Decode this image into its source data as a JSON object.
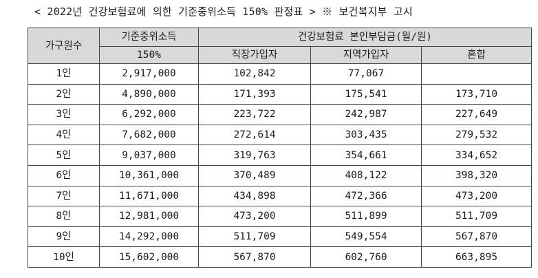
{
  "title": "< 2022년 건강보험료에 의한 기준중위소득 150% 판정표 >  ※ 보건복지부 고시",
  "headers": {
    "household": "가구원수",
    "income_line1": "기준중위소득",
    "income_line2": "150%",
    "premium_group": "건강보험료 본인부담금(월/원)",
    "employee": "직장가입자",
    "regional": "지역가입자",
    "mixed": "혼합"
  },
  "rows": [
    {
      "household": "1인",
      "income": "2,917,000",
      "employee": "102,842",
      "regional": "77,067",
      "mixed": ""
    },
    {
      "household": "2인",
      "income": "4,890,000",
      "employee": "171,393",
      "regional": "175,541",
      "mixed": "173,710"
    },
    {
      "household": "3인",
      "income": "6,292,000",
      "employee": "223,722",
      "regional": "242,987",
      "mixed": "227,649"
    },
    {
      "household": "4인",
      "income": "7,682,000",
      "employee": "272,614",
      "regional": "303,435",
      "mixed": "279,532"
    },
    {
      "household": "5인",
      "income": "9,037,000",
      "employee": "319,763",
      "regional": "354,661",
      "mixed": "334,652"
    },
    {
      "household": "6인",
      "income": "10,361,000",
      "employee": "370,489",
      "regional": "408,122",
      "mixed": "398,320"
    },
    {
      "household": "7인",
      "income": "11,671,000",
      "employee": "434,898",
      "regional": "472,366",
      "mixed": "473,200"
    },
    {
      "household": "8인",
      "income": "12,981,000",
      "employee": "473,200",
      "regional": "511,899",
      "mixed": "511,709"
    },
    {
      "household": "9인",
      "income": "14,292,000",
      "employee": "511,709",
      "regional": "549,554",
      "mixed": "567,870"
    },
    {
      "household": "10인",
      "income": "15,602,000",
      "employee": "567,870",
      "regional": "602,760",
      "mixed": "663,895"
    }
  ]
}
